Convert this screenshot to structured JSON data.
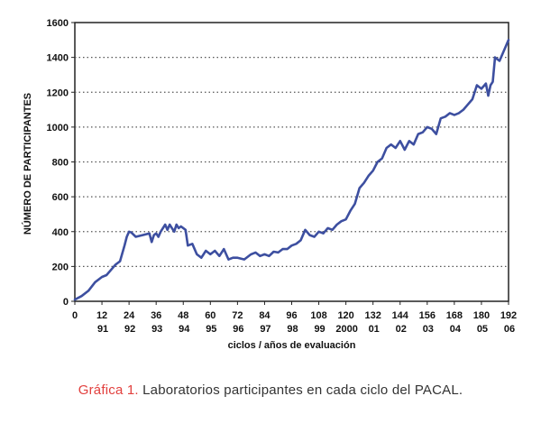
{
  "caption": {
    "label": "Gráfica 1.",
    "text": "Laboratorios participantes en cada ciclo del PACAL."
  },
  "colors": {
    "series": "#3d4fa0",
    "grid": "#555555",
    "caption_label": "#e2403e"
  },
  "chart_data": {
    "type": "line",
    "title": "",
    "xlabel": "ciclos / años de evaluación",
    "ylabel": "NÚMERO DE PARTICIPANTES",
    "xlim": [
      0,
      192
    ],
    "ylim": [
      0,
      1600
    ],
    "grid": true,
    "x_ticks": [
      "0",
      "12",
      "24",
      "36",
      "48",
      "60",
      "72",
      "84",
      "96",
      "108",
      "120",
      "132",
      "144",
      "156",
      "168",
      "180",
      "192"
    ],
    "year_labels": [
      {
        "x": 12,
        "label": "91"
      },
      {
        "x": 24,
        "label": "92"
      },
      {
        "x": 36,
        "label": "93"
      },
      {
        "x": 48,
        "label": "94"
      },
      {
        "x": 60,
        "label": "95"
      },
      {
        "x": 72,
        "label": "96"
      },
      {
        "x": 84,
        "label": "97"
      },
      {
        "x": 96,
        "label": "98"
      },
      {
        "x": 108,
        "label": "99"
      },
      {
        "x": 120,
        "label": "2000"
      },
      {
        "x": 132,
        "label": "01"
      },
      {
        "x": 144,
        "label": "02"
      },
      {
        "x": 156,
        "label": "03"
      },
      {
        "x": 168,
        "label": "04"
      },
      {
        "x": 180,
        "label": "05"
      },
      {
        "x": 192,
        "label": "06"
      }
    ],
    "y_ticks": [
      "0",
      "200",
      "400",
      "600",
      "800",
      "1000",
      "1200",
      "1400",
      "1600"
    ],
    "series": [
      {
        "name": "",
        "x": [
          0,
          3,
          6,
          9,
          12,
          14,
          16,
          18,
          20,
          22,
          23,
          24,
          25,
          27,
          30,
          33,
          34,
          35,
          36,
          37,
          38,
          40,
          41,
          42,
          43,
          44,
          45,
          46,
          47,
          48,
          49,
          50,
          52,
          54,
          56,
          58,
          60,
          62,
          64,
          66,
          68,
          70,
          72,
          75,
          78,
          80,
          82,
          84,
          86,
          88,
          90,
          92,
          94,
          96,
          98,
          100,
          102,
          104,
          106,
          108,
          110,
          112,
          114,
          116,
          118,
          120,
          122,
          124,
          126,
          128,
          130,
          132,
          134,
          136,
          138,
          140,
          142,
          144,
          146,
          148,
          150,
          152,
          154,
          156,
          158,
          160,
          162,
          164,
          166,
          168,
          170,
          172,
          174,
          176,
          178,
          180,
          182,
          183,
          184,
          185,
          186,
          188,
          190,
          192
        ],
        "y": [
          10,
          30,
          60,
          110,
          140,
          150,
          180,
          210,
          230,
          320,
          370,
          400,
          395,
          370,
          380,
          390,
          340,
          380,
          390,
          370,
          400,
          440,
          410,
          440,
          420,
          400,
          440,
          420,
          430,
          420,
          410,
          320,
          330,
          270,
          250,
          290,
          270,
          290,
          260,
          300,
          240,
          250,
          250,
          240,
          270,
          280,
          260,
          270,
          260,
          285,
          280,
          300,
          300,
          320,
          330,
          350,
          410,
          380,
          370,
          400,
          390,
          420,
          410,
          440,
          460,
          470,
          520,
          560,
          650,
          680,
          720,
          750,
          800,
          820,
          880,
          900,
          880,
          920,
          870,
          920,
          900,
          960,
          970,
          1000,
          990,
          960,
          1050,
          1060,
          1080,
          1070,
          1080,
          1100,
          1130,
          1160,
          1240,
          1220,
          1250,
          1180,
          1240,
          1260,
          1400,
          1380,
          1440,
          1500
        ]
      }
    ]
  }
}
